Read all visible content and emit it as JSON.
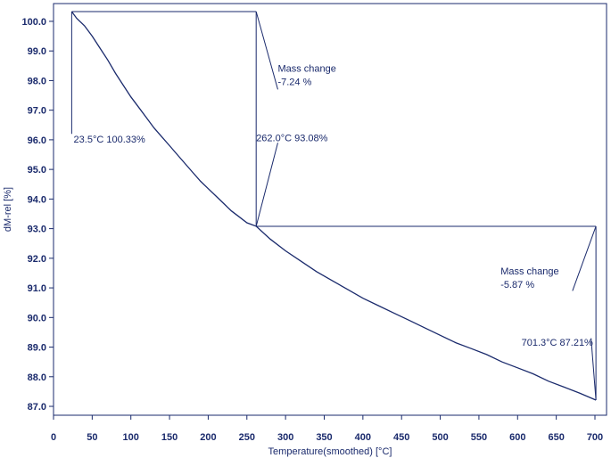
{
  "chart_data": {
    "type": "line",
    "xlabel": "Temperature(smoothed) [°C]",
    "ylabel": "dM-rel  [%]",
    "xlim": [
      0,
      715
    ],
    "ylim": [
      86.7,
      100.6
    ],
    "xticks": [
      0,
      50,
      100,
      150,
      200,
      250,
      300,
      350,
      400,
      450,
      500,
      550,
      600,
      650,
      700
    ],
    "yticks": [
      87.0,
      88.0,
      89.0,
      90.0,
      91.0,
      92.0,
      93.0,
      94.0,
      95.0,
      96.0,
      97.0,
      98.0,
      99.0,
      100.0
    ],
    "series": [
      {
        "x": [
          23.5,
          30,
          40,
          50,
          60,
          70,
          80,
          90,
          100,
          110,
          120,
          130,
          140,
          150,
          160,
          170,
          180,
          190,
          200,
          210,
          220,
          230,
          240,
          250,
          255,
          262,
          280,
          300,
          320,
          340,
          360,
          380,
          400,
          420,
          440,
          460,
          480,
          500,
          520,
          540,
          560,
          580,
          600,
          620,
          640,
          660,
          680,
          701.3
        ],
        "y": [
          100.33,
          100.1,
          99.85,
          99.5,
          99.1,
          98.7,
          98.25,
          97.85,
          97.45,
          97.1,
          96.75,
          96.4,
          96.1,
          95.8,
          95.5,
          95.2,
          94.9,
          94.6,
          94.35,
          94.1,
          93.85,
          93.6,
          93.4,
          93.2,
          93.15,
          93.08,
          92.65,
          92.25,
          91.9,
          91.55,
          91.25,
          90.95,
          90.65,
          90.4,
          90.15,
          89.9,
          89.65,
          89.4,
          89.15,
          88.95,
          88.75,
          88.5,
          88.3,
          88.1,
          87.85,
          87.65,
          87.45,
          87.21
        ]
      }
    ],
    "steps": [
      {
        "start": {
          "x": 23.5,
          "y": 100.33
        },
        "end": {
          "x": 262.0,
          "y": 93.08
        }
      },
      {
        "start": {
          "x": 262.0,
          "y": 93.08
        },
        "end": {
          "x": 701.3,
          "y": 87.21
        }
      }
    ],
    "annotations": [
      {
        "id": "start-point",
        "lines": [
          "23.5°C   100.33%"
        ]
      },
      {
        "id": "mid-point",
        "lines": [
          "262.0°C   93.08%"
        ]
      },
      {
        "id": "end-point",
        "lines": [
          "701.3°C   87.21%"
        ]
      },
      {
        "id": "mass-change-1",
        "lines": [
          "Mass change",
          "-7.24 %"
        ]
      },
      {
        "id": "mass-change-2",
        "lines": [
          "Mass change",
          "-5.87 %"
        ]
      }
    ],
    "grid": false
  }
}
